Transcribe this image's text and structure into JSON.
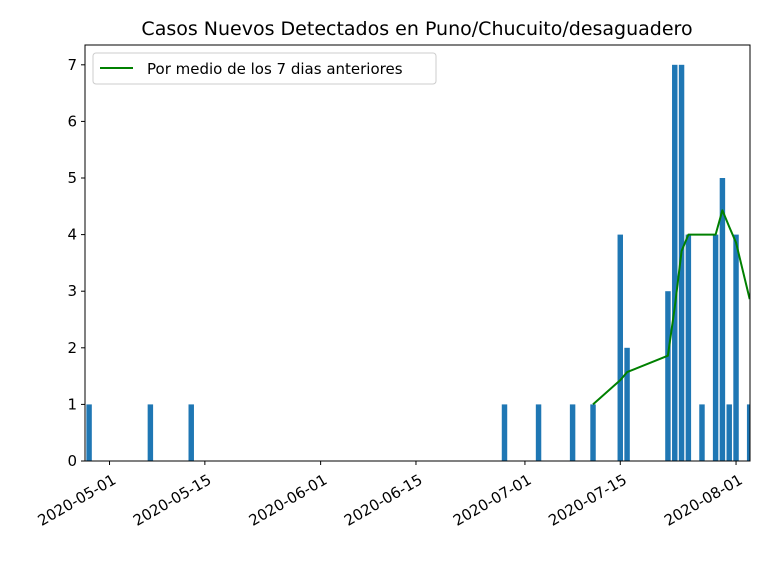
{
  "chart_data": {
    "type": "bar",
    "title": "Casos Nuevos Detectados en Puno/Chucuito/desaguadero",
    "xlabel": "",
    "ylabel": "",
    "xlim": [
      "2020-04-28",
      "2020-08-03"
    ],
    "ylim": [
      0,
      7.35
    ],
    "y_ticks": [
      0,
      1,
      2,
      3,
      4,
      5,
      6,
      7
    ],
    "x_ticks": [
      "2020-05-01",
      "2020-05-15",
      "2020-06-01",
      "2020-06-15",
      "2020-07-01",
      "2020-07-15",
      "2020-08-01"
    ],
    "grid": false,
    "legend_position": "top-left",
    "series": [
      {
        "type": "bar",
        "color": "#1f77b4",
        "x": [
          "2020-04-28",
          "2020-05-07",
          "2020-05-13",
          "2020-06-28",
          "2020-07-03",
          "2020-07-08",
          "2020-07-11",
          "2020-07-15",
          "2020-07-16",
          "2020-07-22",
          "2020-07-23",
          "2020-07-24",
          "2020-07-25",
          "2020-07-27",
          "2020-07-29",
          "2020-07-30",
          "2020-07-31",
          "2020-08-01",
          "2020-08-03"
        ],
        "values": [
          1,
          1,
          1,
          1,
          1,
          1,
          1,
          4,
          2,
          3,
          7,
          7,
          4,
          1,
          4,
          5,
          1,
          4,
          1
        ]
      },
      {
        "type": "line",
        "name": "Por medio de los 7 dias anteriores",
        "color": "#008000",
        "x": [
          "2020-07-11",
          "2020-07-15",
          "2020-07-16",
          "2020-07-22",
          "2020-07-23",
          "2020-07-24",
          "2020-07-25",
          "2020-07-27",
          "2020-07-29",
          "2020-07-30",
          "2020-07-31",
          "2020-08-01",
          "2020-08-03"
        ],
        "values": [
          1.0,
          1.43,
          1.57,
          1.86,
          2.71,
          3.71,
          4.0,
          4.0,
          4.0,
          4.43,
          4.14,
          3.86,
          2.86
        ]
      }
    ]
  }
}
